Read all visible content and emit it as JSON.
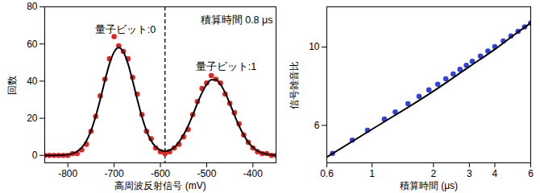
{
  "chart_data": [
    {
      "type": "scatter",
      "x_label": "高周波反射信号 (mV)",
      "y_label": "回数",
      "xlim": [
        -850,
        -350
      ],
      "xticks": [
        -800,
        -700,
        -600,
        -500,
        -400
      ],
      "ylim": [
        -4,
        80
      ],
      "yticks": [
        0,
        20,
        40,
        60,
        80
      ],
      "annotations": [
        "量子ビット:0",
        "量子ビット:1",
        "積算時間 0.8 μs"
      ],
      "threshold": {
        "value": -590,
        "line_style": "dashed",
        "color": "#000000"
      },
      "series": [
        {
          "type": "scatter",
          "marker": "circle",
          "color": "#e8231f",
          "x": [
            -850,
            -840,
            -830,
            -820,
            -810,
            -800,
            -790,
            -780,
            -770,
            -760,
            -750,
            -740,
            -730,
            -720,
            -710,
            -700,
            -690,
            -680,
            -670,
            -660,
            -650,
            -640,
            -630,
            -620,
            -610,
            -600,
            -590,
            -580,
            -570,
            -560,
            -550,
            -540,
            -530,
            -520,
            -510,
            -500,
            -490,
            -480,
            -470,
            -460,
            -450,
            -440,
            -430,
            -420,
            -410,
            -400,
            -390,
            -380,
            -370,
            -360,
            -350
          ],
          "values": [
            0,
            0,
            0,
            0,
            0,
            0,
            1,
            1,
            3,
            6,
            13,
            21,
            32,
            41,
            52,
            64,
            59,
            56,
            52,
            42,
            33,
            22,
            13,
            9,
            4,
            2,
            1,
            2,
            4,
            6,
            10,
            14,
            22,
            29,
            36,
            39,
            43,
            41,
            39,
            33,
            28,
            23,
            17,
            11,
            7,
            4,
            2,
            1,
            1,
            0,
            0
          ]
        },
        {
          "type": "line",
          "line_style": "solid",
          "color": "#000000",
          "x": [
            -850,
            -840,
            -830,
            -820,
            -810,
            -800,
            -790,
            -780,
            -770,
            -760,
            -750,
            -740,
            -730,
            -720,
            -710,
            -700,
            -690,
            -680,
            -670,
            -660,
            -650,
            -640,
            -630,
            -620,
            -610,
            -600,
            -590,
            -580,
            -570,
            -560,
            -550,
            -540,
            -530,
            -520,
            -510,
            -500,
            -490,
            -480,
            -470,
            -460,
            -450,
            -440,
            -430,
            -420,
            -410,
            -400,
            -390,
            -380,
            -370,
            -360,
            -350
          ],
          "values": [
            0,
            0,
            0,
            0.1,
            0.2,
            0.4,
            1.0,
            2.1,
            4.3,
            7.8,
            13.3,
            20.9,
            30.2,
            40.2,
            49.3,
            55.7,
            58,
            55.7,
            49.3,
            40.2,
            30.2,
            20.9,
            13.3,
            7.9,
            4.6,
            2.8,
            2.3,
            2.8,
            4.3,
            7.1,
            11,
            15.9,
            21.8,
            28,
            33.7,
            38.2,
            40.7,
            40.7,
            38.2,
            33.7,
            28,
            21.8,
            15.9,
            11,
            7.1,
            4.3,
            2.4,
            1.3,
            0.7,
            0.3,
            0.1
          ]
        }
      ]
    },
    {
      "type": "scatter",
      "log": true,
      "x_label": "積算時間 (μs)",
      "y_label": "信号雑音比",
      "xlim": [
        0.6,
        6
      ],
      "xticks": [
        0.6,
        1,
        2,
        3,
        4,
        6
      ],
      "ylim": [
        4.7,
        13
      ],
      "yticks": [
        6,
        10
      ],
      "series": [
        {
          "type": "scatter",
          "marker": "circle",
          "color": "#3340e0",
          "x": [
            0.64,
            0.8,
            0.95,
            1.15,
            1.3,
            1.5,
            1.7,
            1.9,
            2.1,
            2.3,
            2.5,
            2.7,
            2.9,
            3.1,
            3.4,
            3.7,
            4.0,
            4.4,
            4.8,
            5.2,
            5.6,
            6.0
          ],
          "values": [
            5.0,
            5.45,
            5.81,
            6.25,
            6.55,
            6.91,
            7.25,
            7.56,
            7.85,
            8.13,
            8.39,
            8.64,
            8.88,
            9.11,
            9.43,
            9.74,
            10.03,
            10.4,
            10.75,
            11.08,
            11.4,
            11.7
          ]
        },
        {
          "type": "line",
          "line_style": "solid",
          "color": "#000000",
          "x": [
            0.6,
            1,
            2,
            3,
            4,
            5,
            6
          ],
          "values": [
            4.88,
            5.85,
            7.5,
            8.8,
            9.85,
            10.85,
            11.7
          ]
        }
      ]
    }
  ]
}
